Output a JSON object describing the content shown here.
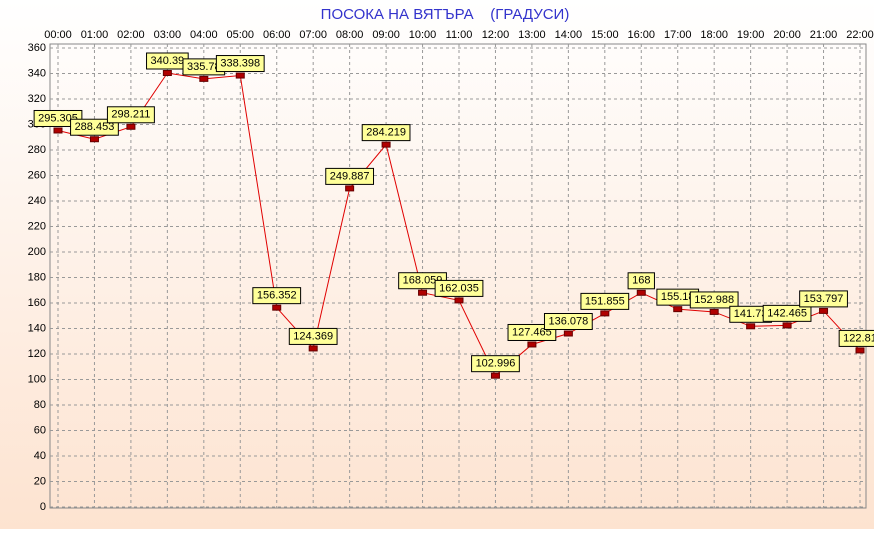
{
  "chart_data": {
    "type": "line",
    "title": "ПОСОКА НА ВЯТЪРА    (ГРАДУСИ)",
    "categories": [
      "00:00",
      "01:00",
      "02:00",
      "03:00",
      "04:00",
      "05:00",
      "06:00",
      "07:00",
      "08:00",
      "09:00",
      "10:00",
      "11:00",
      "12:00",
      "13:00",
      "14:00",
      "15:00",
      "16:00",
      "17:00",
      "18:00",
      "19:00",
      "20:00",
      "21:00",
      "22:00"
    ],
    "series": [
      {
        "name": "ПОСОКА",
        "color": "#e00000",
        "values": [
          295.305,
          288.453,
          298.211,
          340.39,
          335.78,
          338.398,
          156.352,
          124.369,
          249.887,
          284.219,
          168.059,
          162.035,
          102.996,
          127.465,
          136.078,
          151.855,
          168,
          155.18,
          152.988,
          141.73,
          142.465,
          153.797,
          122.81
        ]
      }
    ],
    "ylim": [
      0,
      360
    ],
    "yticks": [
      0,
      20,
      40,
      60,
      80,
      100,
      120,
      140,
      160,
      180,
      200,
      220,
      240,
      260,
      280,
      300,
      320,
      340,
      360
    ],
    "grid": true
  }
}
